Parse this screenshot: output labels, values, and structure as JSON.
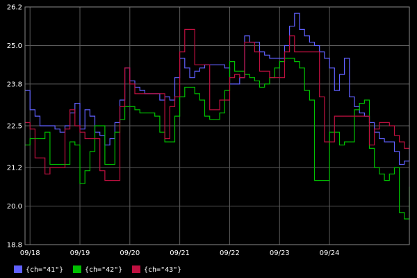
{
  "chart_data": {
    "type": "line",
    "y_ticks": [
      18.8,
      20.0,
      21.2,
      22.5,
      23.8,
      25.0,
      26.2
    ],
    "y_tick_labels": [
      "18.8",
      "20.0",
      "21.2",
      "22.5",
      "23.8",
      "25.0",
      "26.2"
    ],
    "ylim": [
      18.8,
      26.2
    ],
    "x_ticks": [
      "09/18",
      "09/19",
      "09/20",
      "09/21",
      "09/22",
      "09/23",
      "09/24"
    ],
    "xlim": [
      -0.1,
      7.6
    ],
    "grid": true,
    "legend_position": "bottom-left",
    "series": [
      {
        "name": "{ch=\"41\"}",
        "color": "#6060ff",
        "x": [
          -0.1,
          0.0,
          0.1,
          0.2,
          0.3,
          0.4,
          0.5,
          0.6,
          0.7,
          0.8,
          0.9,
          1.0,
          1.1,
          1.2,
          1.3,
          1.4,
          1.5,
          1.6,
          1.7,
          1.8,
          1.9,
          2.0,
          2.1,
          2.2,
          2.3,
          2.4,
          2.5,
          2.6,
          2.7,
          2.8,
          2.9,
          3.0,
          3.1,
          3.2,
          3.3,
          3.4,
          3.5,
          3.6,
          3.7,
          3.8,
          3.9,
          4.0,
          4.1,
          4.2,
          4.3,
          4.4,
          4.5,
          4.6,
          4.7,
          4.8,
          4.9,
          5.0,
          5.1,
          5.2,
          5.3,
          5.4,
          5.5,
          5.6,
          5.7,
          5.8,
          5.9,
          6.0,
          6.1,
          6.2,
          6.3,
          6.4,
          6.5,
          6.6,
          6.7,
          6.8,
          6.9,
          7.0,
          7.1,
          7.2,
          7.3,
          7.4,
          7.5,
          7.6
        ],
        "values": [
          23.6,
          23.0,
          22.8,
          22.5,
          22.5,
          22.5,
          22.4,
          22.3,
          22.5,
          22.9,
          23.2,
          22.4,
          23.0,
          22.8,
          22.3,
          22.2,
          21.9,
          22.1,
          22.6,
          23.3,
          24.3,
          23.9,
          23.7,
          23.6,
          23.5,
          23.5,
          23.5,
          23.3,
          23.4,
          23.3,
          24.0,
          24.6,
          24.3,
          24.0,
          24.2,
          24.3,
          24.4,
          24.4,
          24.4,
          24.4,
          24.3,
          23.8,
          23.8,
          24.0,
          25.3,
          25.1,
          25.1,
          24.8,
          24.7,
          24.6,
          24.6,
          24.6,
          25.0,
          25.6,
          26.0,
          25.5,
          25.3,
          25.1,
          25.0,
          24.8,
          24.6,
          24.3,
          23.6,
          24.1,
          24.6,
          23.4,
          23.1,
          22.9,
          22.8,
          22.6,
          22.3,
          22.1,
          22.0,
          22.0,
          21.7,
          21.3,
          21.4,
          21.8
        ]
      },
      {
        "name": "{ch=\"42\"}",
        "color": "#00c000",
        "x": [
          -0.1,
          0.0,
          0.1,
          0.2,
          0.3,
          0.4,
          0.5,
          0.6,
          0.7,
          0.8,
          0.9,
          1.0,
          1.1,
          1.2,
          1.3,
          1.4,
          1.5,
          1.6,
          1.7,
          1.8,
          1.9,
          2.0,
          2.1,
          2.2,
          2.3,
          2.4,
          2.5,
          2.6,
          2.7,
          2.8,
          2.9,
          3.0,
          3.1,
          3.2,
          3.3,
          3.4,
          3.5,
          3.6,
          3.7,
          3.8,
          3.9,
          4.0,
          4.1,
          4.2,
          4.3,
          4.4,
          4.5,
          4.6,
          4.7,
          4.8,
          4.9,
          5.0,
          5.1,
          5.2,
          5.3,
          5.4,
          5.5,
          5.6,
          5.7,
          5.8,
          5.9,
          6.0,
          6.1,
          6.2,
          6.3,
          6.4,
          6.5,
          6.6,
          6.7,
          6.8,
          6.9,
          7.0,
          7.1,
          7.2,
          7.3,
          7.4,
          7.5,
          7.6
        ],
        "values": [
          21.9,
          22.1,
          22.1,
          22.1,
          22.3,
          21.3,
          21.3,
          21.3,
          21.3,
          22.0,
          21.9,
          20.7,
          21.1,
          21.7,
          22.5,
          22.5,
          21.3,
          21.3,
          22.3,
          22.7,
          23.1,
          23.1,
          23.0,
          22.9,
          22.9,
          22.9,
          22.8,
          22.3,
          22.0,
          22.0,
          22.8,
          23.4,
          23.7,
          23.7,
          23.5,
          23.3,
          22.8,
          22.7,
          22.7,
          22.9,
          23.6,
          24.5,
          24.2,
          24.2,
          24.1,
          24.0,
          23.9,
          23.7,
          23.8,
          24.0,
          24.3,
          24.5,
          24.6,
          24.6,
          24.5,
          24.3,
          23.6,
          23.3,
          20.8,
          20.8,
          20.8,
          22.3,
          22.3,
          21.9,
          22.0,
          22.0,
          23.0,
          23.2,
          23.3,
          21.8,
          21.2,
          21.0,
          20.8,
          21.0,
          21.2,
          19.8,
          19.6,
          20.6
        ]
      },
      {
        "name": "{ch=\"43\"}",
        "color": "#c01040",
        "x": [
          -0.1,
          0.0,
          0.1,
          0.2,
          0.3,
          0.4,
          0.5,
          0.6,
          0.7,
          0.8,
          0.9,
          1.0,
          1.1,
          1.2,
          1.3,
          1.4,
          1.5,
          1.6,
          1.7,
          1.8,
          1.9,
          2.0,
          2.1,
          2.2,
          2.3,
          2.4,
          2.5,
          2.6,
          2.7,
          2.8,
          2.9,
          3.0,
          3.1,
          3.2,
          3.3,
          3.4,
          3.5,
          3.6,
          3.7,
          3.8,
          3.9,
          4.0,
          4.1,
          4.2,
          4.3,
          4.4,
          4.5,
          4.6,
          4.7,
          4.8,
          4.9,
          5.0,
          5.1,
          5.2,
          5.3,
          5.4,
          5.5,
          5.6,
          5.7,
          5.8,
          5.9,
          6.0,
          6.1,
          6.2,
          6.3,
          6.4,
          6.5,
          6.6,
          6.7,
          6.8,
          6.9,
          7.0,
          7.1,
          7.2,
          7.3,
          7.4,
          7.5,
          7.6
        ],
        "values": [
          22.6,
          22.4,
          21.5,
          21.5,
          21.0,
          21.2,
          21.2,
          21.2,
          22.4,
          23.0,
          22.5,
          22.3,
          22.1,
          22.1,
          22.1,
          21.1,
          20.8,
          20.8,
          20.8,
          23.1,
          24.3,
          23.8,
          23.5,
          23.5,
          23.5,
          23.5,
          23.5,
          23.5,
          22.1,
          23.1,
          23.4,
          24.8,
          25.5,
          25.5,
          24.4,
          24.4,
          24.4,
          23.0,
          23.0,
          23.3,
          23.3,
          24.0,
          24.1,
          24.0,
          25.1,
          25.1,
          24.8,
          24.2,
          24.2,
          24.0,
          24.0,
          24.0,
          24.8,
          25.3,
          24.8,
          24.8,
          24.8,
          24.8,
          24.8,
          23.4,
          22.0,
          22.0,
          22.8,
          22.8,
          22.8,
          22.8,
          22.8,
          22.8,
          22.8,
          21.9,
          22.4,
          22.6,
          22.6,
          22.5,
          22.2,
          22.0,
          21.8,
          21.9
        ]
      }
    ]
  }
}
